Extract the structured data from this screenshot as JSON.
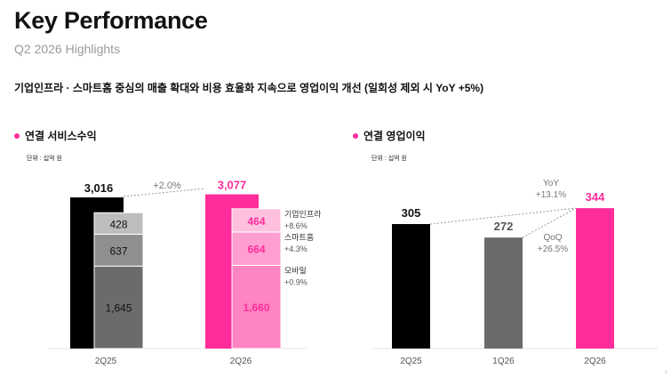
{
  "header": {
    "title": "Key Performance",
    "subtitle": "Q2 2026 Highlights",
    "headline": "기업인프라 · 스마트홈 중심의 매출 확대와 비용 효율화 지속으로 영업이익 개선 (일회성 제외 시 YoY +5%)"
  },
  "colors": {
    "accent": "#ff2d9b",
    "black": "#000000",
    "dark_gray": "#6b6b6b",
    "gray": "#8f8f8f",
    "light_gray": "#bdbdbd",
    "pink_light": "#ffc0e0",
    "pink_mid": "#ff9fd0",
    "pink_strong": "#ff84c3"
  },
  "page_number": "6",
  "chart_data": [
    {
      "type": "bar",
      "title": "연결 서비스수익",
      "unit": "단위 : 십억 원",
      "categories": [
        "2Q25",
        "2Q26"
      ],
      "totals": [
        3016,
        3077
      ],
      "total_labels": [
        "3,016",
        "3,077"
      ],
      "growth_label": "+2.0%",
      "series": [
        {
          "name": "기업인프라",
          "values": [
            428,
            464
          ],
          "labels": [
            "428",
            "464"
          ],
          "change": "+8.6%"
        },
        {
          "name": "스마트홈",
          "values": [
            637,
            664
          ],
          "labels": [
            "637",
            "664"
          ],
          "change": "+4.3%"
        },
        {
          "name": "모바일",
          "values": [
            1645,
            1660
          ],
          "labels": [
            "1,645",
            "1,660"
          ],
          "change": "+0.9%"
        }
      ],
      "legend": "right"
    },
    {
      "type": "bar",
      "title": "연결 영업이익",
      "unit": "단위 : 십억 원",
      "categories": [
        "2Q25",
        "1Q26",
        "2Q26"
      ],
      "values": [
        305,
        272,
        344
      ],
      "labels": [
        "305",
        "272",
        "344"
      ],
      "annotations": [
        {
          "label": "YoY",
          "value": "+13.1%"
        },
        {
          "label": "QoQ",
          "value": "+26.5%"
        }
      ]
    }
  ]
}
